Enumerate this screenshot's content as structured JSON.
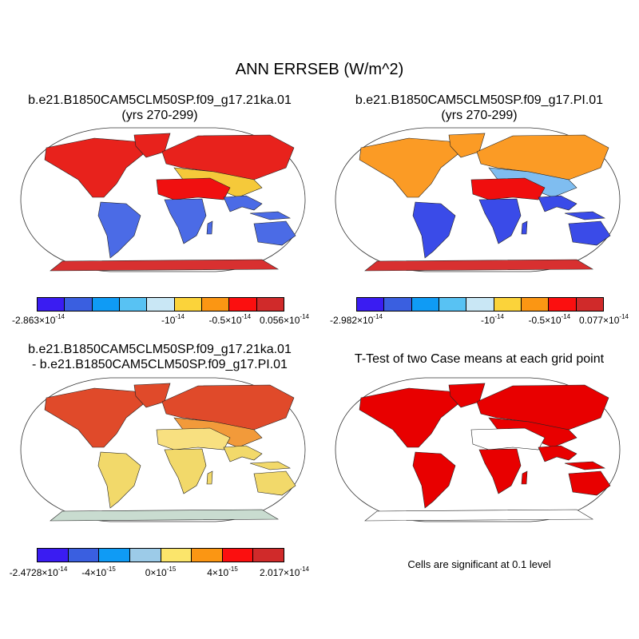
{
  "title": "ANN ERRSEB (W/m^2)",
  "panels": [
    {
      "id": "case1",
      "title_line1": "b.e21.B1850CAM5CLM50SP.f09_g17.21ka.01",
      "title_line2": "(yrs 270-299)",
      "colors": [
        "#3a1cf2",
        "#3a5fe0",
        "#0f9bf5",
        "#58c2f3",
        "#c9e7f5",
        "#fbd33a",
        "#fb9613",
        "#fb0f0f",
        "#d02a2a"
      ],
      "labels": [
        {
          "base": "-2.863×10",
          "exp": "-14"
        },
        {
          "base": "-10",
          "exp": "-14"
        },
        {
          "base": "-0.5×10",
          "exp": "-14"
        },
        {
          "base": "0.056×10",
          "exp": "-14"
        }
      ]
    },
    {
      "id": "case2",
      "title_line1": "b.e21.B1850CAM5CLM50SP.f09_g17.PI.01",
      "title_line2": "(yrs 270-299)",
      "colors": [
        "#3a1cf2",
        "#3a5fe0",
        "#0f9bf5",
        "#58c2f3",
        "#c9e7f5",
        "#fbd33a",
        "#fb9613",
        "#fb0f0f",
        "#d02a2a"
      ],
      "labels": [
        {
          "base": "-2.982×10",
          "exp": "-14"
        },
        {
          "base": "-10",
          "exp": "-14"
        },
        {
          "base": "-0.5×10",
          "exp": "-14"
        },
        {
          "base": "0.077×10",
          "exp": "-14"
        }
      ]
    },
    {
      "id": "diff",
      "title_line1": "b.e21.B1850CAM5CLM50SP.f09_g17.21ka.01",
      "title_line2": "- b.e21.B1850CAM5CLM50SP.f09_g17.PI.01",
      "colors": [
        "#3a1cf2",
        "#3a5fe0",
        "#0f9bf5",
        "#9ccbe8",
        "#fbe56b",
        "#fb9613",
        "#fb0f0f",
        "#d02a2a"
      ],
      "labels": [
        {
          "base": "-2.4728×10",
          "exp": "-14"
        },
        {
          "base": "-4×10",
          "exp": "-15"
        },
        {
          "base": "0×10",
          "exp": "-15"
        },
        {
          "base": "4×10",
          "exp": "-15"
        },
        {
          "base": "2.017×10",
          "exp": "-14"
        }
      ]
    },
    {
      "id": "ttest",
      "title_line1": "T-Test of two Case means at each grid point",
      "note": "Cells are significant at 0.1 level"
    }
  ],
  "land_colors": {
    "case1": {
      "north": "#e8221c",
      "tropics": "#4b6be6",
      "desert": "#f01010",
      "mid": "#f5c93a",
      "antarctica": "#d83030"
    },
    "case2": {
      "north": "#fb9b25",
      "tropics": "#3a4be8",
      "desert": "#f00e0e",
      "mid": "#7fbdf0",
      "antarctica": "#d83030"
    },
    "diff": {
      "north": "#e04a2a",
      "tropics": "#f2d96a",
      "desert": "#f8e080",
      "mid": "#f29a3a",
      "antarctica": "#c9dcd0"
    },
    "ttest": {
      "north": "#e80000",
      "tropics": "#e80000",
      "desert": "#ffffff",
      "mid": "#e80000",
      "antarctica": "#ffffff"
    }
  }
}
